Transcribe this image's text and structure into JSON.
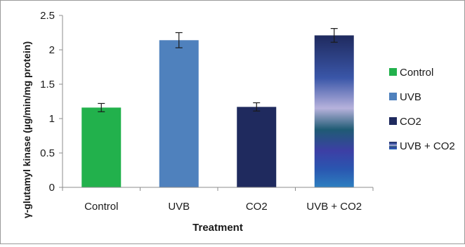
{
  "chart_data": {
    "type": "bar",
    "xlabel": "Treatment",
    "ylabel": "γ-glutamyl kinase  (µg/min/mg protein)",
    "ylim": [
      0,
      2.5
    ],
    "ytick_labels": [
      "0",
      "0.5",
      "1",
      "1.5",
      "2",
      "2.5"
    ],
    "categories": [
      "Control",
      "UVB",
      "CO2",
      "UVB + CO2"
    ],
    "values": [
      1.16,
      2.14,
      1.17,
      2.21
    ],
    "errors": [
      0.06,
      0.11,
      0.06,
      0.1
    ],
    "colors": [
      "#22b14c",
      "#4f81bd",
      "#1f2a5e",
      "gradient-blue-lavender"
    ],
    "legend": {
      "position": "right",
      "entries": [
        "Control",
        "UVB",
        "CO2",
        "UVB + CO2"
      ]
    },
    "grid": false
  }
}
